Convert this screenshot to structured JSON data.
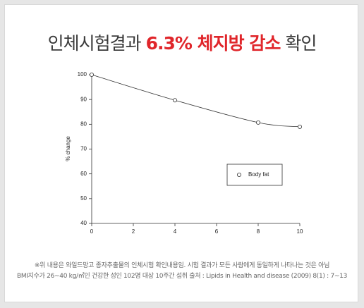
{
  "title_parts": [
    "인체시험결과",
    "6.3% 체지방 감소",
    "확인"
  ],
  "chart_data": {
    "type": "scatter",
    "ylabel": "% change",
    "x": [
      0,
      4,
      8,
      10
    ],
    "series": [
      {
        "name": "Body fat",
        "color": "#333333",
        "values": [
          100,
          89.7,
          80.7,
          79
        ]
      }
    ],
    "xlim": [
      0,
      10
    ],
    "xticks": [
      0,
      2,
      4,
      6,
      8,
      10
    ],
    "ylim": [
      40,
      100
    ],
    "yticks": [
      40,
      50,
      60,
      70,
      80,
      90,
      100
    ],
    "trend_line": true,
    "legend_position": "right"
  },
  "footnote": [
    "※위 내용은 와일드망고 종자추출물의 인체시험 확인내용임. 시험 결과가 모든 사람에게 동일하게 나타나는 것은 아님",
    "BMI지수가 26~40 kg/㎡인 건강한 성인 102명 대상 10주간 섭취  출처 : Lipids in Health and disease (2009) 8(1) : 7~13"
  ]
}
